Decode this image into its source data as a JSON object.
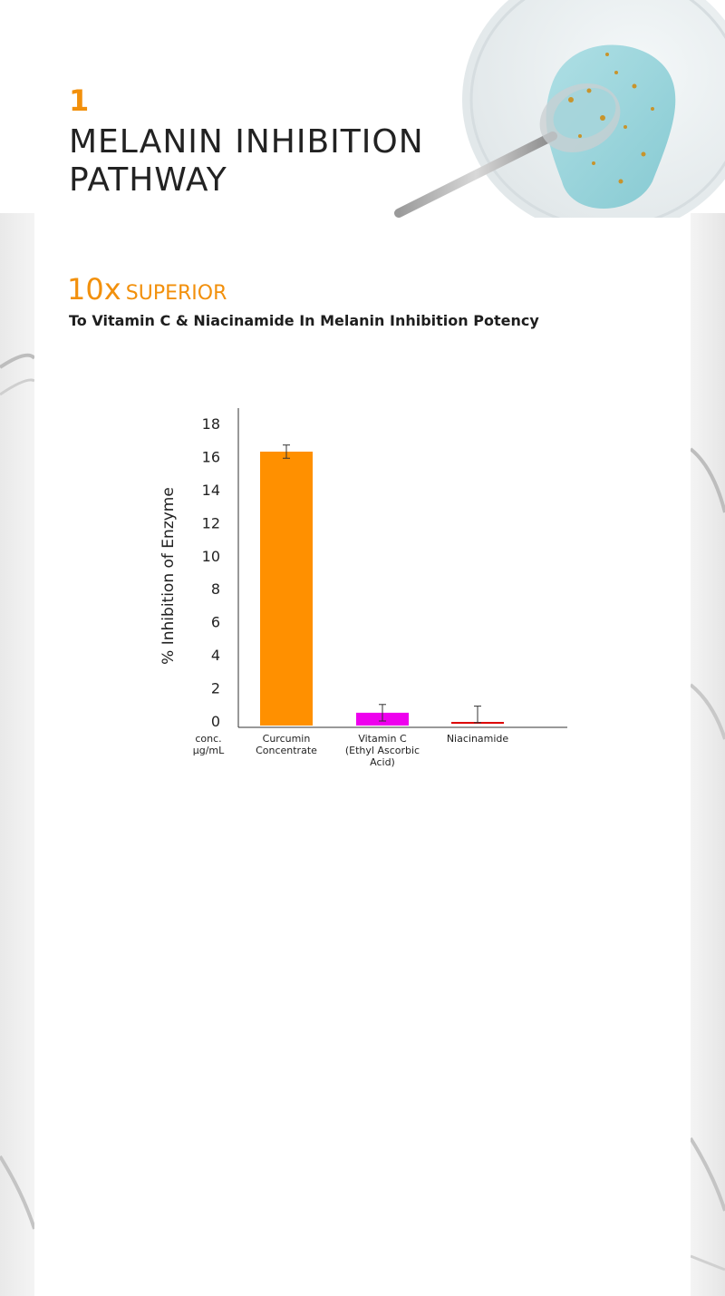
{
  "header": {
    "step_number": "1",
    "title": "MELANIN INHIBITION PATHWAY"
  },
  "highlight": {
    "multiplier": "10x",
    "label": "SUPERIOR",
    "subtitle": "To Vitamin C & Niacinamide In Melanin Inhibition Potency"
  },
  "colors": {
    "accent": "#f2900c"
  },
  "chart_data": {
    "type": "bar",
    "ylabel": "% Inhibition of Enzyme",
    "xlabel_prefix": [
      "conc.",
      "µg/mL"
    ],
    "categories": [
      [
        "Curcumin",
        "Concentrate"
      ],
      [
        "Vitamin C",
        "(Ethyl Ascorbic",
        "Acid)"
      ],
      [
        "Niacinamide"
      ]
    ],
    "values": [
      16.3,
      0.5,
      0.1
    ],
    "error": [
      0.4,
      0.5,
      0.8
    ],
    "bar_colors": [
      "#ff9000",
      "#ee00ee",
      "#dd0000"
    ],
    "ylim": [
      0,
      18
    ],
    "yticks": [
      0,
      2,
      4,
      6,
      8,
      10,
      12,
      14,
      16,
      18
    ],
    "grid": false
  }
}
